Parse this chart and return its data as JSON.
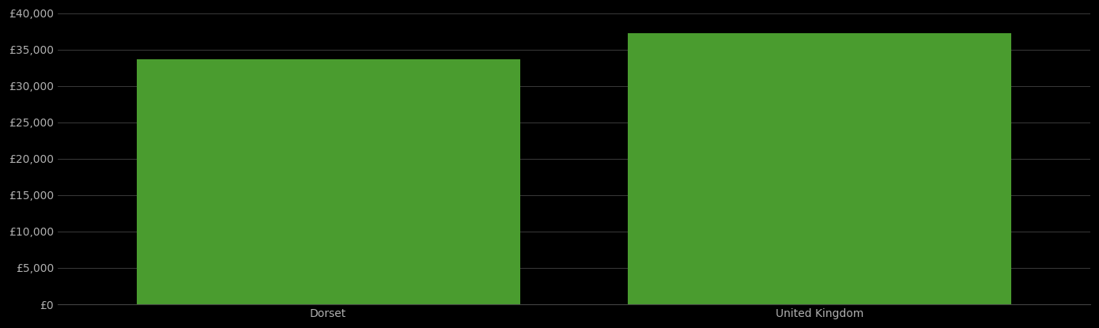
{
  "categories": [
    "Dorset",
    "United Kingdom"
  ],
  "values": [
    33700,
    37200
  ],
  "bar_color": "#4a9c2f",
  "background_color": "#000000",
  "text_color": "#b0b0b0",
  "grid_color": "#444444",
  "ylim": [
    0,
    40000
  ],
  "ytick_step": 5000,
  "bar_width": 0.78,
  "figsize": [
    13.9,
    4.15
  ],
  "dpi": 100,
  "tick_fontsize": 10,
  "xlabel_fontsize": 10
}
